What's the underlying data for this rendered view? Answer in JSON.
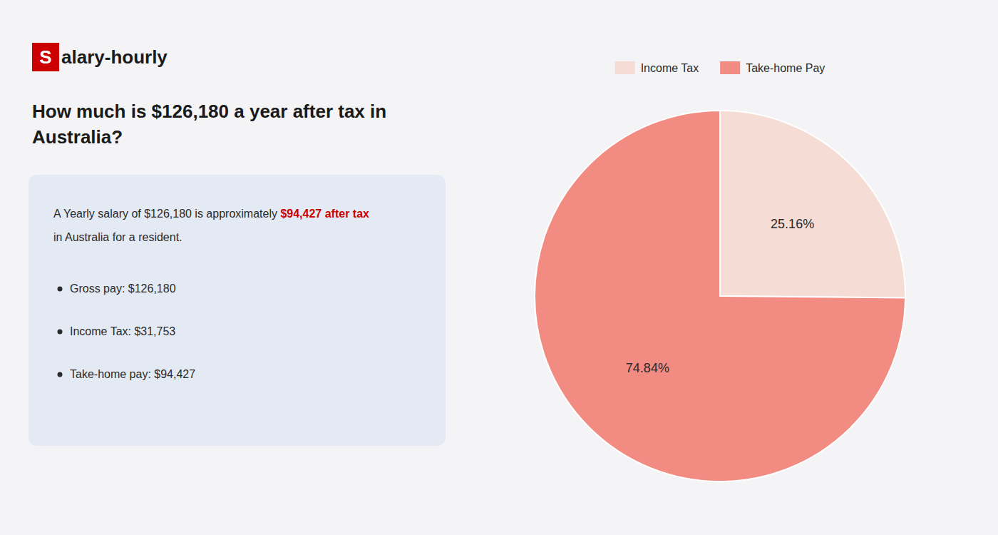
{
  "chart_data": {
    "type": "pie",
    "title": "How much is $126,180 a year after tax in\nAustralia?",
    "categories": [
      "Income Tax",
      "Take-home Pay"
    ],
    "values": [
      25.16,
      74.84
    ],
    "value_labels": [
      "25.16%",
      "74.84%"
    ],
    "colors": [
      "#f5ddd5",
      "#f28b82"
    ],
    "data_labels": true,
    "legend": "top",
    "annotations": [
      "S",
      "alary-hourly",
      "A Yearly salary of $126,180 is approximately ",
      "$94,427 after tax",
      "in Australia for a resident.",
      "Gross pay: $126,180",
      "Income Tax: $31,753",
      "Take-home pay: $94,427"
    ]
  }
}
